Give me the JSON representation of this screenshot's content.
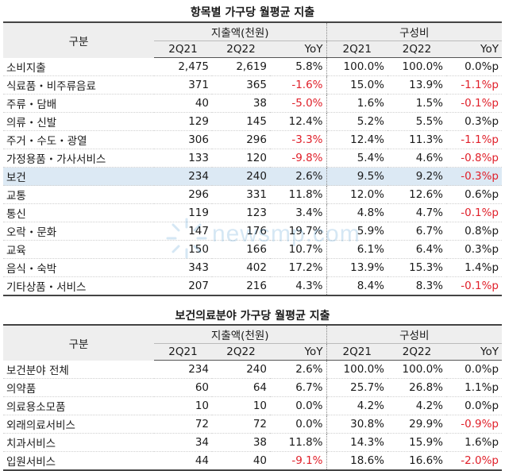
{
  "table1": {
    "title": "항목별 가구당 월평균 지출",
    "category_header": "구분",
    "group_spend": "지출액(천원)",
    "group_share": "구성비",
    "columns": [
      "2Q21",
      "2Q22",
      "YoY",
      "2Q21",
      "2Q22",
      "YoY"
    ],
    "rows": [
      {
        "label": "소비지출",
        "values": [
          "2,475",
          "2,619",
          "5.8%",
          "100.0%",
          "100.0%",
          "0.0%p"
        ],
        "neg": [
          false,
          false,
          false,
          false,
          false,
          false
        ]
      },
      {
        "label": "식료품・비주류음료",
        "values": [
          "371",
          "365",
          "-1.6%",
          "15.0%",
          "13.9%",
          "-1.1%p"
        ],
        "neg": [
          false,
          false,
          true,
          false,
          false,
          true
        ]
      },
      {
        "label": "주류・담배",
        "values": [
          "40",
          "38",
          "-5.0%",
          "1.6%",
          "1.5%",
          "-0.1%p"
        ],
        "neg": [
          false,
          false,
          true,
          false,
          false,
          true
        ]
      },
      {
        "label": "의류・신발",
        "values": [
          "129",
          "145",
          "12.4%",
          "5.2%",
          "5.5%",
          "0.3%p"
        ],
        "neg": [
          false,
          false,
          false,
          false,
          false,
          false
        ]
      },
      {
        "label": "주거・수도・광열",
        "values": [
          "306",
          "296",
          "-3.3%",
          "12.4%",
          "11.3%",
          "-1.1%p"
        ],
        "neg": [
          false,
          false,
          true,
          false,
          false,
          true
        ]
      },
      {
        "label": "가정용품・가사서비스",
        "values": [
          "133",
          "120",
          "-9.8%",
          "5.4%",
          "4.6%",
          "-0.8%p"
        ],
        "neg": [
          false,
          false,
          true,
          false,
          false,
          true
        ]
      },
      {
        "label": "보건",
        "values": [
          "234",
          "240",
          "2.6%",
          "9.5%",
          "9.2%",
          "-0.3%p"
        ],
        "neg": [
          false,
          false,
          false,
          false,
          false,
          true
        ],
        "highlight": true
      },
      {
        "label": "교통",
        "values": [
          "296",
          "331",
          "11.8%",
          "12.0%",
          "12.6%",
          "0.6%p"
        ],
        "neg": [
          false,
          false,
          false,
          false,
          false,
          false
        ]
      },
      {
        "label": "통신",
        "values": [
          "119",
          "123",
          "3.4%",
          "4.8%",
          "4.7%",
          "-0.1%p"
        ],
        "neg": [
          false,
          false,
          false,
          false,
          false,
          true
        ]
      },
      {
        "label": "오락・문화",
        "values": [
          "147",
          "176",
          "19.7%",
          "5.9%",
          "6.7%",
          "0.8%p"
        ],
        "neg": [
          false,
          false,
          false,
          false,
          false,
          false
        ]
      },
      {
        "label": "교육",
        "values": [
          "150",
          "166",
          "10.7%",
          "6.1%",
          "6.4%",
          "0.3%p"
        ],
        "neg": [
          false,
          false,
          false,
          false,
          false,
          false
        ]
      },
      {
        "label": "음식・숙박",
        "values": [
          "343",
          "402",
          "17.2%",
          "13.9%",
          "15.3%",
          "1.4%p"
        ],
        "neg": [
          false,
          false,
          false,
          false,
          false,
          false
        ]
      },
      {
        "label": "기타상품・서비스",
        "values": [
          "207",
          "216",
          "4.3%",
          "8.4%",
          "8.3%",
          "-0.1%p"
        ],
        "neg": [
          false,
          false,
          false,
          false,
          false,
          true
        ]
      }
    ]
  },
  "table2": {
    "title": "보건의료분야 가구당 월평균 지출",
    "category_header": "구분",
    "group_spend": "지출액(천원)",
    "group_share": "구성비",
    "columns": [
      "2Q21",
      "2Q22",
      "YoY",
      "2Q21",
      "2Q22",
      "YoY"
    ],
    "rows": [
      {
        "label": "보건분야 전체",
        "values": [
          "234",
          "240",
          "2.6%",
          "100.0%",
          "100.0%",
          "0.0%p"
        ],
        "neg": [
          false,
          false,
          false,
          false,
          false,
          false
        ]
      },
      {
        "label": "의약품",
        "values": [
          "60",
          "64",
          "6.7%",
          "25.7%",
          "26.8%",
          "1.1%p"
        ],
        "neg": [
          false,
          false,
          false,
          false,
          false,
          false
        ]
      },
      {
        "label": "의료용소모품",
        "values": [
          "10",
          "10",
          "0.0%",
          "4.2%",
          "4.2%",
          "0.0%p"
        ],
        "neg": [
          false,
          false,
          false,
          false,
          false,
          false
        ]
      },
      {
        "label": "외래의료서비스",
        "values": [
          "72",
          "72",
          "0.0%",
          "30.8%",
          "29.9%",
          "-0.9%p"
        ],
        "neg": [
          false,
          false,
          false,
          false,
          false,
          true
        ]
      },
      {
        "label": "치과서비스",
        "values": [
          "34",
          "38",
          "11.8%",
          "14.3%",
          "15.9%",
          "1.6%p"
        ],
        "neg": [
          false,
          false,
          false,
          false,
          false,
          false
        ]
      },
      {
        "label": "입원서비스",
        "values": [
          "44",
          "40",
          "-9.1%",
          "18.6%",
          "16.6%",
          "-2.0%p"
        ],
        "neg": [
          false,
          false,
          true,
          false,
          false,
          true
        ]
      }
    ]
  },
  "watermark": {
    "text": "newsmp.com",
    "icon": "sunburst-logo-icon",
    "color": "#1f7fc4"
  }
}
